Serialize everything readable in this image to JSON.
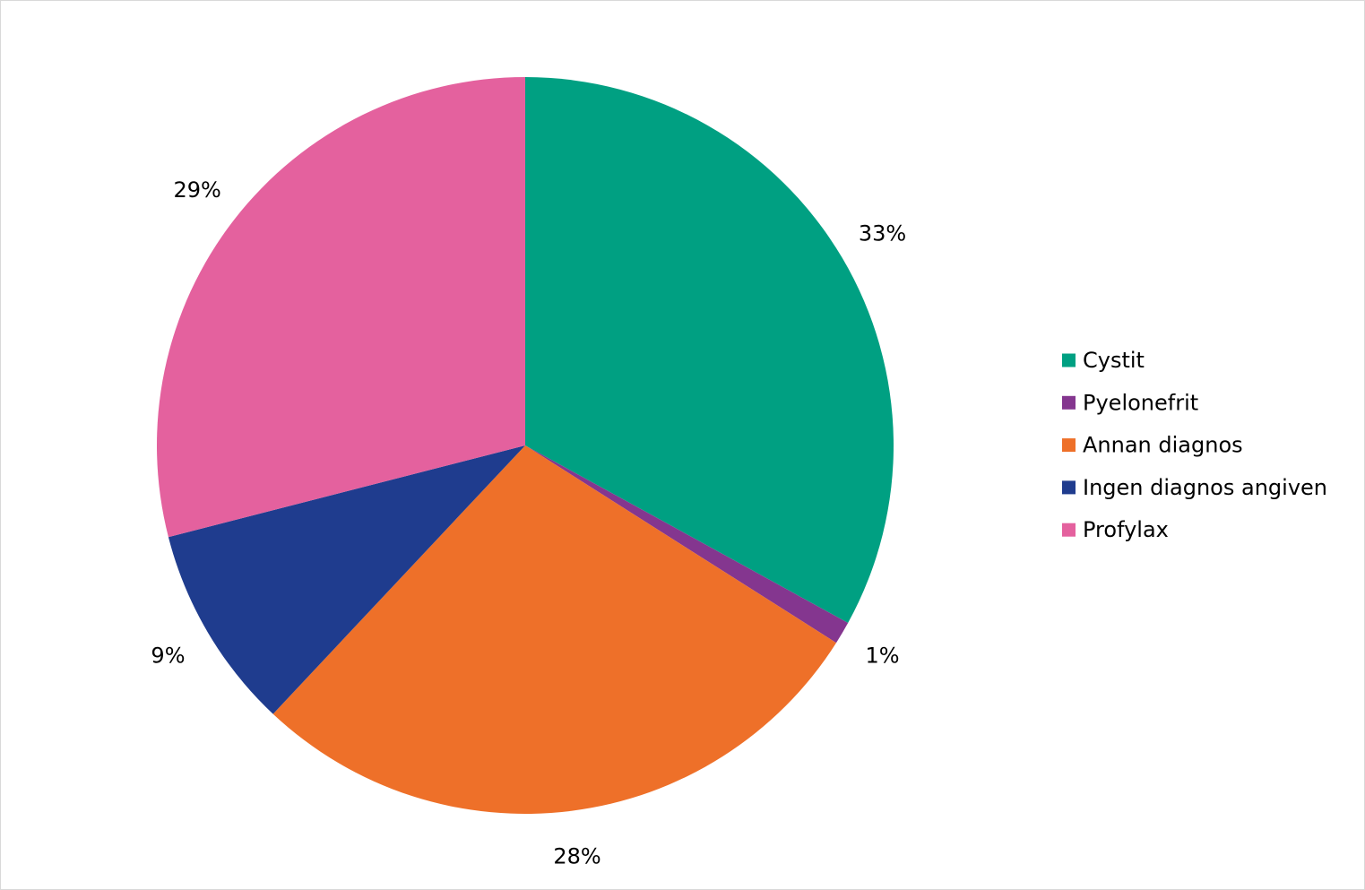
{
  "chart_data": {
    "type": "pie",
    "categories": [
      "Cystit",
      "Pyelonefrit",
      "Annan diagnos",
      "Ingen diagnos angiven",
      "Profylax"
    ],
    "values": [
      33,
      1,
      28,
      9,
      29
    ],
    "value_labels": [
      "33%",
      "1%",
      "28%",
      "9%",
      "29%"
    ],
    "colors": [
      "#00a082",
      "#84368f",
      "#ee7029",
      "#1f3c8e",
      "#e4619e"
    ],
    "legend": "right"
  }
}
